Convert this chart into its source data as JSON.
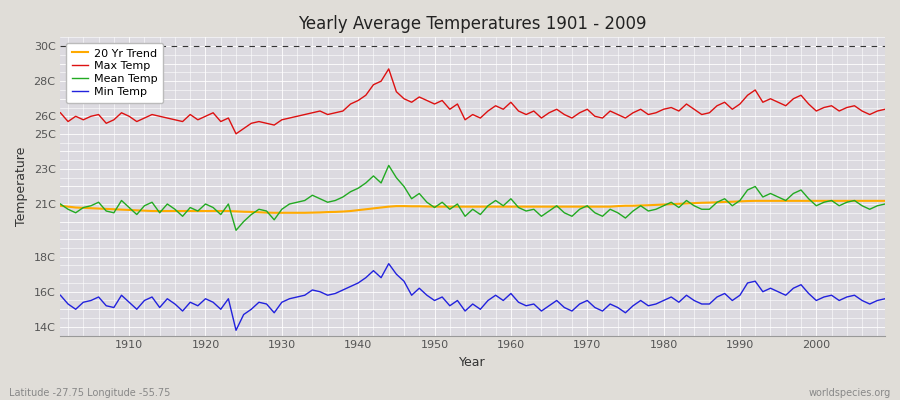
{
  "title": "Yearly Average Temperatures 1901 - 2009",
  "xlabel": "Year",
  "ylabel": "Temperature",
  "footnote_left": "Latitude -27.75 Longitude -55.75",
  "footnote_right": "worldspecies.org",
  "xlim": [
    1901,
    2009
  ],
  "ylim": [
    13.5,
    30.5
  ],
  "background_color": "#e0ddd8",
  "plot_bg_color": "#dcdae0",
  "grid_color": "#ffffff",
  "line_colors": {
    "max": "#dd1111",
    "mean": "#22aa22",
    "min": "#2222dd",
    "trend": "#ffaa00"
  },
  "legend_labels": [
    "Max Temp",
    "Mean Temp",
    "Min Temp",
    "20 Yr Trend"
  ],
  "years": [
    1901,
    1902,
    1903,
    1904,
    1905,
    1906,
    1907,
    1908,
    1909,
    1910,
    1911,
    1912,
    1913,
    1914,
    1915,
    1916,
    1917,
    1918,
    1919,
    1920,
    1921,
    1922,
    1923,
    1924,
    1925,
    1926,
    1927,
    1928,
    1929,
    1930,
    1931,
    1932,
    1933,
    1934,
    1935,
    1936,
    1937,
    1938,
    1939,
    1940,
    1941,
    1942,
    1943,
    1944,
    1945,
    1946,
    1947,
    1948,
    1949,
    1950,
    1951,
    1952,
    1953,
    1954,
    1955,
    1956,
    1957,
    1958,
    1959,
    1960,
    1961,
    1962,
    1963,
    1964,
    1965,
    1966,
    1967,
    1968,
    1969,
    1970,
    1971,
    1972,
    1973,
    1974,
    1975,
    1976,
    1977,
    1978,
    1979,
    1980,
    1981,
    1982,
    1983,
    1984,
    1985,
    1986,
    1987,
    1988,
    1989,
    1990,
    1991,
    1992,
    1993,
    1994,
    1995,
    1996,
    1997,
    1998,
    1999,
    2000,
    2001,
    2002,
    2003,
    2004,
    2005,
    2006,
    2007,
    2008,
    2009
  ],
  "max_temp": [
    26.2,
    25.7,
    26.0,
    25.8,
    26.0,
    26.1,
    25.6,
    25.8,
    26.2,
    26.0,
    25.7,
    25.9,
    26.1,
    26.0,
    25.9,
    25.8,
    25.7,
    26.1,
    25.8,
    26.0,
    26.2,
    25.7,
    25.9,
    25.0,
    25.3,
    25.6,
    25.7,
    25.6,
    25.5,
    25.8,
    25.9,
    26.0,
    26.1,
    26.2,
    26.3,
    26.1,
    26.2,
    26.3,
    26.7,
    26.9,
    27.2,
    27.8,
    28.0,
    28.7,
    27.4,
    27.0,
    26.8,
    27.1,
    26.9,
    26.7,
    26.9,
    26.4,
    26.7,
    25.8,
    26.1,
    25.9,
    26.3,
    26.6,
    26.4,
    26.8,
    26.3,
    26.1,
    26.3,
    25.9,
    26.2,
    26.4,
    26.1,
    25.9,
    26.2,
    26.4,
    26.0,
    25.9,
    26.3,
    26.1,
    25.9,
    26.2,
    26.4,
    26.1,
    26.2,
    26.4,
    26.5,
    26.3,
    26.7,
    26.4,
    26.1,
    26.2,
    26.6,
    26.8,
    26.4,
    26.7,
    27.2,
    27.5,
    26.8,
    27.0,
    26.8,
    26.6,
    27.0,
    27.2,
    26.7,
    26.3,
    26.5,
    26.6,
    26.3,
    26.5,
    26.6,
    26.3,
    26.1,
    26.3,
    26.4
  ],
  "mean_temp": [
    21.0,
    20.7,
    20.5,
    20.8,
    20.9,
    21.1,
    20.6,
    20.5,
    21.2,
    20.8,
    20.4,
    20.9,
    21.1,
    20.5,
    21.0,
    20.7,
    20.3,
    20.8,
    20.6,
    21.0,
    20.8,
    20.4,
    21.0,
    19.5,
    20.0,
    20.4,
    20.7,
    20.6,
    20.1,
    20.7,
    21.0,
    21.1,
    21.2,
    21.5,
    21.3,
    21.1,
    21.2,
    21.4,
    21.7,
    21.9,
    22.2,
    22.6,
    22.2,
    23.2,
    22.5,
    22.0,
    21.3,
    21.6,
    21.1,
    20.8,
    21.1,
    20.7,
    21.0,
    20.3,
    20.7,
    20.4,
    20.9,
    21.2,
    20.9,
    21.3,
    20.8,
    20.6,
    20.7,
    20.3,
    20.6,
    20.9,
    20.5,
    20.3,
    20.7,
    20.9,
    20.5,
    20.3,
    20.7,
    20.5,
    20.2,
    20.6,
    20.9,
    20.6,
    20.7,
    20.9,
    21.1,
    20.8,
    21.2,
    20.9,
    20.7,
    20.7,
    21.1,
    21.3,
    20.9,
    21.2,
    21.8,
    22.0,
    21.4,
    21.6,
    21.4,
    21.2,
    21.6,
    21.8,
    21.3,
    20.9,
    21.1,
    21.2,
    20.9,
    21.1,
    21.2,
    20.9,
    20.7,
    20.9,
    21.0
  ],
  "min_temp": [
    15.8,
    15.3,
    15.0,
    15.4,
    15.5,
    15.7,
    15.2,
    15.1,
    15.8,
    15.4,
    15.0,
    15.5,
    15.7,
    15.1,
    15.6,
    15.3,
    14.9,
    15.4,
    15.2,
    15.6,
    15.4,
    15.0,
    15.6,
    13.8,
    14.7,
    15.0,
    15.4,
    15.3,
    14.8,
    15.4,
    15.6,
    15.7,
    15.8,
    16.1,
    16.0,
    15.8,
    15.9,
    16.1,
    16.3,
    16.5,
    16.8,
    17.2,
    16.8,
    17.6,
    17.0,
    16.6,
    15.8,
    16.2,
    15.8,
    15.5,
    15.7,
    15.2,
    15.5,
    14.9,
    15.3,
    15.0,
    15.5,
    15.8,
    15.5,
    15.9,
    15.4,
    15.2,
    15.3,
    14.9,
    15.2,
    15.5,
    15.1,
    14.9,
    15.3,
    15.5,
    15.1,
    14.9,
    15.3,
    15.1,
    14.8,
    15.2,
    15.5,
    15.2,
    15.3,
    15.5,
    15.7,
    15.4,
    15.8,
    15.5,
    15.3,
    15.3,
    15.7,
    15.9,
    15.5,
    15.8,
    16.5,
    16.6,
    16.0,
    16.2,
    16.0,
    15.8,
    16.2,
    16.4,
    15.9,
    15.5,
    15.7,
    15.8,
    15.5,
    15.7,
    15.8,
    15.5,
    15.3,
    15.5,
    15.6
  ],
  "trend": [
    20.9,
    20.85,
    20.8,
    20.78,
    20.76,
    20.74,
    20.72,
    20.7,
    20.68,
    20.66,
    20.64,
    20.62,
    20.6,
    20.6,
    20.6,
    20.6,
    20.6,
    20.6,
    20.6,
    20.6,
    20.6,
    20.6,
    20.6,
    20.58,
    20.56,
    20.55,
    20.53,
    20.51,
    20.5,
    20.5,
    20.5,
    20.5,
    20.5,
    20.51,
    20.52,
    20.54,
    20.55,
    20.57,
    20.6,
    20.65,
    20.7,
    20.75,
    20.8,
    20.85,
    20.88,
    20.88,
    20.87,
    20.87,
    20.86,
    20.85,
    20.85,
    20.85,
    20.85,
    20.85,
    20.85,
    20.85,
    20.85,
    20.85,
    20.85,
    20.85,
    20.85,
    20.85,
    20.85,
    20.85,
    20.85,
    20.85,
    20.85,
    20.85,
    20.85,
    20.85,
    20.85,
    20.85,
    20.85,
    20.88,
    20.9,
    20.9,
    20.92,
    20.93,
    20.95,
    20.97,
    20.99,
    21.01,
    21.03,
    21.05,
    21.07,
    21.08,
    21.1,
    21.12,
    21.13,
    21.15,
    21.17,
    21.18,
    21.18,
    21.18,
    21.18,
    21.18,
    21.18,
    21.18,
    21.18,
    21.18,
    21.18,
    21.18,
    21.18,
    21.18,
    21.18,
    21.18,
    21.18,
    21.18,
    21.18
  ]
}
